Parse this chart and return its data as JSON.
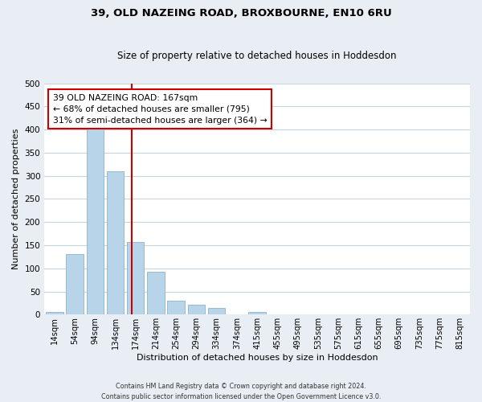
{
  "title": "39, OLD NAZEING ROAD, BROXBOURNE, EN10 6RU",
  "subtitle": "Size of property relative to detached houses in Hoddesdon",
  "xlabel": "Distribution of detached houses by size in Hoddesdon",
  "ylabel": "Number of detached properties",
  "bar_labels": [
    "14sqm",
    "54sqm",
    "94sqm",
    "134sqm",
    "174sqm",
    "214sqm",
    "254sqm",
    "294sqm",
    "334sqm",
    "374sqm",
    "415sqm",
    "455sqm",
    "495sqm",
    "535sqm",
    "575sqm",
    "615sqm",
    "655sqm",
    "695sqm",
    "735sqm",
    "775sqm",
    "815sqm"
  ],
  "bar_values": [
    6,
    130,
    405,
    310,
    157,
    93,
    30,
    22,
    15,
    0,
    5,
    0,
    1,
    0,
    0,
    0,
    0,
    0,
    0,
    0,
    0
  ],
  "bar_color": "#b8d4e8",
  "bar_edge_color": "#8ab4cc",
  "vline_color": "#cc0000",
  "annotation_title": "39 OLD NAZEING ROAD: 167sqm",
  "annotation_line1": "← 68% of detached houses are smaller (795)",
  "annotation_line2": "31% of semi-detached houses are larger (364) →",
  "annotation_box_color": "#ffffff",
  "annotation_box_edge": "#cc0000",
  "ylim": [
    0,
    500
  ],
  "yticks": [
    0,
    50,
    100,
    150,
    200,
    250,
    300,
    350,
    400,
    450,
    500
  ],
  "footer_line1": "Contains HM Land Registry data © Crown copyright and database right 2024.",
  "footer_line2": "Contains public sector information licensed under the Open Government Licence v3.0.",
  "bg_color": "#e8eef4",
  "plot_bg_color": "#ffffff",
  "grid_color": "#c8d4de"
}
